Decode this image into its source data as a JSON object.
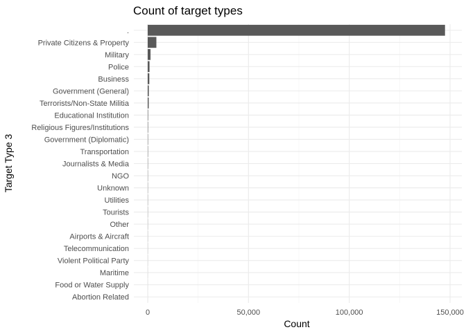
{
  "chart_data": {
    "type": "bar",
    "orientation": "horizontal",
    "title": "Count of target types",
    "xlabel": "Count",
    "ylabel": "Target Type 3",
    "xlim": [
      0,
      155000
    ],
    "xticks": [
      0,
      50000,
      100000,
      150000
    ],
    "xtick_labels": [
      "0",
      "50,000",
      "100,000",
      "150,000"
    ],
    "grid": true,
    "categories": [
      ".",
      "Private Citizens & Property",
      "Military",
      "Police",
      "Business",
      "Government (General)",
      "Terrorists/Non-State Militia",
      "Educational Institution",
      "Religious Figures/Institutions",
      "Government (Diplomatic)",
      "Transportation",
      "Journalists & Media",
      "NGO",
      "Unknown",
      "Utilities",
      "Tourists",
      "Other",
      "Airports & Aircraft",
      "Telecommunication",
      "Violent Political Party",
      "Maritime",
      "Food or Water Supply",
      "Abortion Related"
    ],
    "values": [
      147500,
      4300,
      1400,
      900,
      800,
      550,
      500,
      200,
      180,
      150,
      140,
      120,
      100,
      90,
      80,
      70,
      60,
      50,
      40,
      30,
      20,
      15,
      10
    ]
  }
}
